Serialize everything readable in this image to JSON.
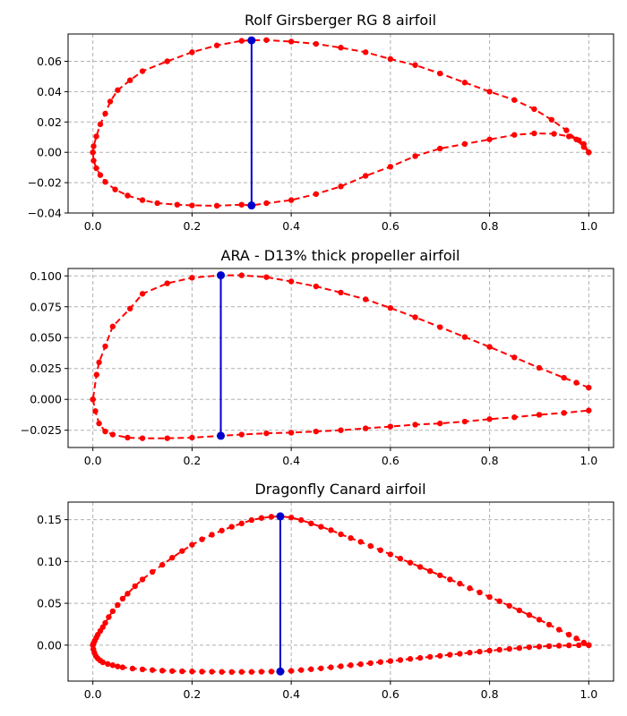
{
  "colors": {
    "points": "#ff0000",
    "thickness": "#0000cc"
  },
  "chart_data": [
    {
      "type": "line",
      "title": "Rolf Girsberger RG 8 airfoil",
      "xlim": [
        -0.05,
        1.05
      ],
      "ylim": [
        -0.04,
        0.078
      ],
      "xticks": [
        0.0,
        0.2,
        0.4,
        0.6,
        0.8,
        1.0
      ],
      "xtick_labels": [
        "0.0",
        "0.2",
        "0.4",
        "0.6",
        "0.8",
        "1.0"
      ],
      "yticks": [
        -0.04,
        -0.02,
        0.0,
        0.02,
        0.04,
        0.06
      ],
      "ytick_labels": [
        "−0.04",
        "−0.02",
        "0.00",
        "0.02",
        "0.04",
        "0.06"
      ],
      "grid": true,
      "upper": {
        "x": [
          1.0,
          0.99,
          0.975,
          0.955,
          0.925,
          0.89,
          0.85,
          0.8,
          0.75,
          0.7,
          0.65,
          0.6,
          0.55,
          0.5,
          0.45,
          0.4,
          0.35,
          0.32,
          0.3,
          0.25,
          0.2,
          0.15,
          0.1,
          0.075,
          0.05,
          0.035,
          0.025,
          0.015,
          0.007,
          0.0015,
          0.0
        ],
        "y": [
          0.0,
          0.0035,
          0.0085,
          0.0145,
          0.0215,
          0.0285,
          0.0345,
          0.04,
          0.046,
          0.052,
          0.0575,
          0.0615,
          0.066,
          0.069,
          0.0715,
          0.073,
          0.074,
          0.0738,
          0.0735,
          0.0705,
          0.066,
          0.06,
          0.0535,
          0.0475,
          0.041,
          0.0335,
          0.0255,
          0.0185,
          0.0105,
          0.004,
          0.0
        ]
      },
      "lower": {
        "x": [
          0.0,
          0.0015,
          0.007,
          0.015,
          0.025,
          0.045,
          0.07,
          0.1,
          0.13,
          0.17,
          0.2,
          0.25,
          0.3,
          0.32,
          0.35,
          0.4,
          0.45,
          0.5,
          0.55,
          0.6,
          0.65,
          0.7,
          0.75,
          0.8,
          0.85,
          0.89,
          0.93,
          0.96,
          0.98,
          0.99,
          1.0
        ],
        "y": [
          0.0,
          -0.0055,
          -0.0105,
          -0.015,
          -0.0195,
          -0.0245,
          -0.0285,
          -0.0315,
          -0.0335,
          -0.0345,
          -0.035,
          -0.0352,
          -0.0345,
          -0.035,
          -0.0335,
          -0.0315,
          -0.0275,
          -0.0225,
          -0.0155,
          -0.0095,
          -0.0025,
          0.0025,
          0.0055,
          0.0085,
          0.0115,
          0.0125,
          0.0122,
          0.0105,
          0.008,
          0.0055,
          0.0
        ]
      },
      "max_thickness": {
        "x": 0.32,
        "y_upper": 0.0738,
        "y_lower": -0.035
      }
    },
    {
      "type": "line",
      "title": "ARA - D13% thick propeller airfoil",
      "xlim": [
        -0.05,
        1.05
      ],
      "ylim": [
        -0.039,
        0.106
      ],
      "xticks": [
        0.0,
        0.2,
        0.4,
        0.6,
        0.8,
        1.0
      ],
      "xtick_labels": [
        "0.0",
        "0.2",
        "0.4",
        "0.6",
        "0.8",
        "1.0"
      ],
      "yticks": [
        -0.025,
        0.0,
        0.025,
        0.05,
        0.075,
        0.1
      ],
      "ytick_labels": [
        "−0.025",
        "0.000",
        "0.025",
        "0.050",
        "0.075",
        "0.100"
      ],
      "grid": true,
      "upper": {
        "x": [
          1.0,
          0.975,
          0.95,
          0.9,
          0.85,
          0.8,
          0.75,
          0.7,
          0.65,
          0.6,
          0.55,
          0.5,
          0.45,
          0.4,
          0.35,
          0.3,
          0.258,
          0.2,
          0.15,
          0.1,
          0.075,
          0.04,
          0.025,
          0.0125,
          0.0075,
          0.0
        ],
        "y": [
          0.0095,
          0.0135,
          0.0175,
          0.0255,
          0.034,
          0.0425,
          0.0505,
          0.0585,
          0.0665,
          0.074,
          0.081,
          0.0865,
          0.0915,
          0.0955,
          0.099,
          0.1005,
          0.1005,
          0.0985,
          0.094,
          0.0855,
          0.0735,
          0.059,
          0.043,
          0.03,
          0.02,
          0.0
        ]
      },
      "lower": {
        "x": [
          0.0,
          0.005,
          0.0125,
          0.025,
          0.04,
          0.07,
          0.1,
          0.15,
          0.2,
          0.258,
          0.3,
          0.35,
          0.4,
          0.45,
          0.5,
          0.55,
          0.6,
          0.65,
          0.7,
          0.75,
          0.8,
          0.85,
          0.9,
          0.95,
          1.0
        ],
        "y": [
          0.0,
          -0.0095,
          -0.0195,
          -0.026,
          -0.0285,
          -0.031,
          -0.0315,
          -0.0315,
          -0.031,
          -0.0295,
          -0.0285,
          -0.0275,
          -0.027,
          -0.026,
          -0.025,
          -0.0235,
          -0.022,
          -0.0205,
          -0.0195,
          -0.018,
          -0.016,
          -0.0145,
          -0.0125,
          -0.011,
          -0.009
        ]
      },
      "max_thickness": {
        "x": 0.258,
        "y_upper": 0.1005,
        "y_lower": -0.0295
      }
    },
    {
      "type": "line",
      "title": "Dragonfly Canard airfoil",
      "xlim": [
        -0.05,
        1.05
      ],
      "ylim": [
        -0.043,
        0.171
      ],
      "xticks": [
        0.0,
        0.2,
        0.4,
        0.6,
        0.8,
        1.0
      ],
      "xtick_labels": [
        "0.0",
        "0.2",
        "0.4",
        "0.6",
        "0.8",
        "1.0"
      ],
      "yticks": [
        0.0,
        0.05,
        0.1,
        0.15
      ],
      "ytick_labels": [
        "0.00",
        "0.05",
        "0.10",
        "0.15"
      ],
      "grid": true,
      "upper": {
        "x": [
          1.0,
          0.99,
          0.975,
          0.96,
          0.94,
          0.92,
          0.9,
          0.88,
          0.86,
          0.84,
          0.82,
          0.8,
          0.78,
          0.76,
          0.74,
          0.72,
          0.7,
          0.68,
          0.66,
          0.64,
          0.62,
          0.6,
          0.58,
          0.56,
          0.54,
          0.52,
          0.5,
          0.48,
          0.46,
          0.44,
          0.42,
          0.4,
          0.378,
          0.36,
          0.34,
          0.32,
          0.3,
          0.28,
          0.26,
          0.24,
          0.22,
          0.2,
          0.18,
          0.16,
          0.14,
          0.12,
          0.1,
          0.085,
          0.07,
          0.06,
          0.05,
          0.04,
          0.032,
          0.025,
          0.02,
          0.015,
          0.01,
          0.007,
          0.004,
          0.002,
          0.001,
          0.0
        ],
        "y": [
          0.0,
          0.003,
          0.008,
          0.0125,
          0.0185,
          0.0245,
          0.0305,
          0.036,
          0.0415,
          0.047,
          0.0525,
          0.0575,
          0.063,
          0.068,
          0.0735,
          0.0785,
          0.0835,
          0.0885,
          0.0935,
          0.0985,
          0.1035,
          0.1085,
          0.1135,
          0.1185,
          0.1235,
          0.128,
          0.1325,
          0.1375,
          0.1415,
          0.1455,
          0.1495,
          0.1525,
          0.154,
          0.1535,
          0.152,
          0.1495,
          0.1455,
          0.1415,
          0.137,
          0.132,
          0.1265,
          0.12,
          0.1125,
          0.1045,
          0.096,
          0.0875,
          0.0785,
          0.0705,
          0.0615,
          0.0555,
          0.048,
          0.0405,
          0.0335,
          0.0265,
          0.0215,
          0.017,
          0.0125,
          0.009,
          0.0055,
          0.003,
          0.0015,
          0.0
        ]
      },
      "lower": {
        "x": [
          0.0,
          0.001,
          0.003,
          0.006,
          0.01,
          0.015,
          0.02,
          0.03,
          0.04,
          0.05,
          0.06,
          0.08,
          0.1,
          0.12,
          0.14,
          0.16,
          0.18,
          0.2,
          0.22,
          0.24,
          0.26,
          0.28,
          0.3,
          0.32,
          0.34,
          0.36,
          0.378,
          0.4,
          0.42,
          0.44,
          0.46,
          0.48,
          0.5,
          0.52,
          0.54,
          0.56,
          0.58,
          0.6,
          0.62,
          0.64,
          0.66,
          0.68,
          0.7,
          0.72,
          0.74,
          0.76,
          0.78,
          0.8,
          0.82,
          0.84,
          0.86,
          0.88,
          0.9,
          0.92,
          0.94,
          0.96,
          0.98,
          1.0
        ],
        "y": [
          0.0,
          -0.005,
          -0.009,
          -0.013,
          -0.016,
          -0.0185,
          -0.0205,
          -0.0225,
          -0.024,
          -0.0255,
          -0.0265,
          -0.028,
          -0.029,
          -0.0298,
          -0.0305,
          -0.031,
          -0.0313,
          -0.0315,
          -0.0317,
          -0.0318,
          -0.032,
          -0.0321,
          -0.032,
          -0.032,
          -0.0318,
          -0.0316,
          -0.0315,
          -0.0308,
          -0.0298,
          -0.0288,
          -0.0278,
          -0.0265,
          -0.0253,
          -0.024,
          -0.0228,
          -0.0215,
          -0.0202,
          -0.019,
          -0.0178,
          -0.0165,
          -0.0153,
          -0.014,
          -0.0128,
          -0.0115,
          -0.0103,
          -0.009,
          -0.0078,
          -0.0066,
          -0.0055,
          -0.0045,
          -0.0035,
          -0.0025,
          -0.0018,
          -0.0012,
          -0.0007,
          -0.0003,
          -0.0001,
          0.0
        ]
      },
      "max_thickness": {
        "x": 0.378,
        "y_upper": 0.154,
        "y_lower": -0.0315
      }
    }
  ]
}
